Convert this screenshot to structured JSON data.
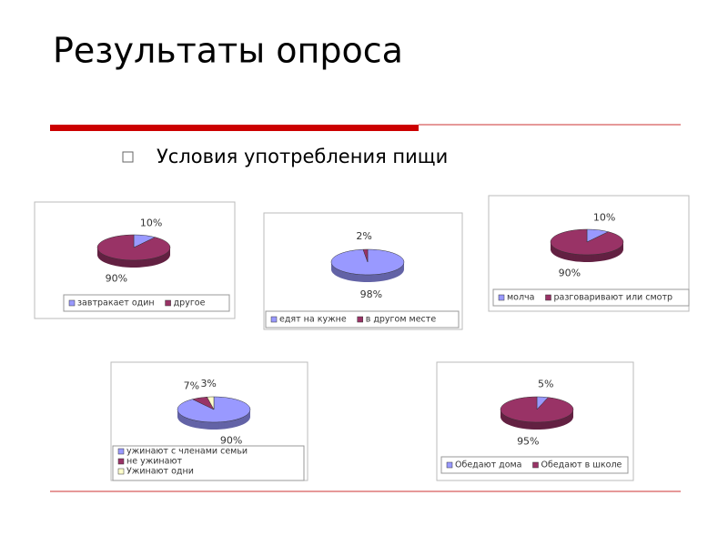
{
  "title": "Результаты опроса",
  "bullet": "Условия употребления пищи",
  "chart_data": [
    {
      "type": "pie",
      "categories": [
        "завтракает один",
        "другое"
      ],
      "values": [
        10,
        90
      ],
      "value_labels": [
        "10%",
        "90%"
      ],
      "colors": [
        "#9999ff",
        "#993366"
      ]
    },
    {
      "type": "pie",
      "categories": [
        "едят на кужне",
        "в другом месте"
      ],
      "values": [
        98,
        2
      ],
      "value_labels": [
        "98%",
        "2%"
      ],
      "colors": [
        "#9999ff",
        "#993366"
      ]
    },
    {
      "type": "pie",
      "categories": [
        "молча",
        "разговаривают или смотр"
      ],
      "values": [
        10,
        90
      ],
      "value_labels": [
        "10%",
        "90%"
      ],
      "colors": [
        "#9999ff",
        "#993366"
      ]
    },
    {
      "type": "pie",
      "categories": [
        "ужинают с членами семьи",
        "не ужинают",
        "Ужинают одни"
      ],
      "values": [
        90,
        7,
        3
      ],
      "value_labels": [
        "90%",
        "7%",
        "3%"
      ],
      "colors": [
        "#9999ff",
        "#993366",
        "#ffffcc"
      ]
    },
    {
      "type": "pie",
      "categories": [
        "Обедают дома",
        "Обедают в школе"
      ],
      "values": [
        5,
        95
      ],
      "value_labels": [
        "5%",
        "95%"
      ],
      "colors": [
        "#9999ff",
        "#993366"
      ]
    }
  ]
}
